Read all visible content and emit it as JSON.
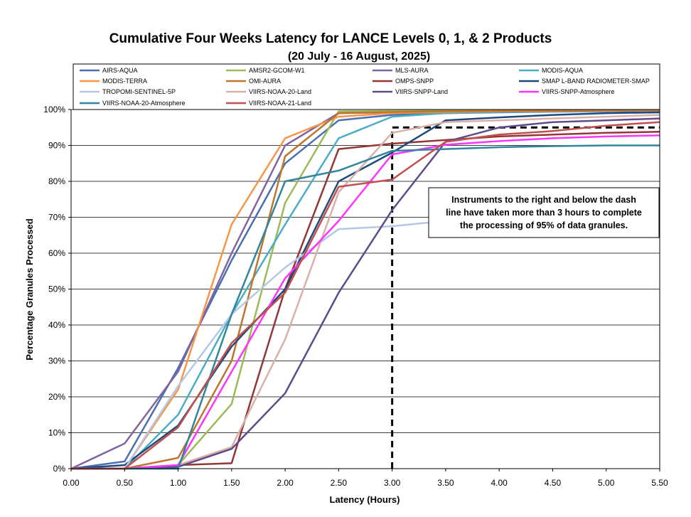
{
  "chart_data": {
    "type": "line",
    "title": "Cumulative Four Weeks Latency  for LANCE Levels 0, 1, & 2 Products",
    "subtitle": "(20  July   -  16  August,  2025)",
    "xlabel": "Latency (Hours)",
    "ylabel": "Percentage Granules Processed",
    "xlim": [
      0,
      5.5
    ],
    "ylim": [
      0,
      100
    ],
    "x_ticks": [
      "0.00",
      "0.50",
      "1.00",
      "1.50",
      "2.00",
      "2.50",
      "3.00",
      "3.50",
      "4.00",
      "4.50",
      "5.00",
      "5.50"
    ],
    "y_ticks": [
      "0%",
      "10%",
      "20%",
      "30%",
      "40%",
      "50%",
      "60%",
      "70%",
      "80%",
      "90%",
      "100%"
    ],
    "grid": "horizontal",
    "legend_position": "top",
    "annotation": [
      "Instruments to the right and below the dash",
      "line have taken more than 3 hours to complete",
      "the processing of 95% of data granules."
    ],
    "threshold": {
      "x": 3.0,
      "y": 95
    },
    "x": [
      0,
      0.5,
      1.0,
      1.5,
      2.0,
      2.5,
      3.0,
      3.5,
      4.0,
      4.5,
      5.0,
      5.5
    ],
    "series": [
      {
        "name": "AIRS-AQUA",
        "color": "#4a6fb5",
        "values": [
          0,
          2,
          28,
          58,
          85,
          97,
          98.5,
          99,
          99.2,
          99.4,
          99.5,
          99.6
        ]
      },
      {
        "name": "AMSR2-GCOM-W1",
        "color": "#9bbb59",
        "values": [
          0,
          0,
          1,
          18,
          74,
          99.5,
          99.6,
          99.7,
          99.8,
          99.8,
          99.9,
          99.9
        ]
      },
      {
        "name": "MLS-AURA",
        "color": "#8064a2",
        "values": [
          0,
          7,
          27,
          60,
          90,
          99,
          99.2,
          99.4,
          99.5,
          99.6,
          99.7,
          99.8
        ]
      },
      {
        "name": "MODIS-AQUA",
        "color": "#4bacc6",
        "values": [
          0,
          0,
          15,
          43,
          68,
          92,
          98,
          99,
          99.3,
          99.5,
          99.6,
          99.7
        ]
      },
      {
        "name": "MODIS-TERRA",
        "color": "#f79646",
        "values": [
          0,
          0,
          22,
          68,
          92,
          98,
          99,
          99.3,
          99.5,
          99.6,
          99.7,
          99.8
        ]
      },
      {
        "name": "OMI-AURA",
        "color": "#c0752e",
        "values": [
          0,
          0,
          3,
          30,
          87,
          99,
          99.3,
          99.5,
          99.6,
          99.7,
          99.8,
          99.8
        ]
      },
      {
        "name": "OMPS-SNPP",
        "color": "#943634",
        "values": [
          0,
          0,
          1,
          1.5,
          50,
          89,
          90.5,
          91.5,
          92.5,
          93,
          93.5,
          93.8
        ]
      },
      {
        "name": "SMAP L-BAND RADIOMETER-SMAP",
        "color": "#1f497d",
        "values": [
          0,
          1,
          12,
          34,
          50,
          80,
          88,
          97,
          97.8,
          98.5,
          99,
          99.2
        ]
      },
      {
        "name": "TROPOMI-SENTINEL-5P",
        "color": "#b4c7e7",
        "values": [
          0,
          0,
          23,
          43,
          56,
          66.7,
          67.5,
          69,
          70,
          70.5,
          71,
          71.5
        ]
      },
      {
        "name": "VIIRS-NOAA-20-Land",
        "color": "#d9b0a8",
        "values": [
          0,
          0,
          1,
          6,
          36,
          77,
          93.5,
          96.5,
          97,
          97.5,
          98,
          98.5
        ]
      },
      {
        "name": "VIIRS-SNPP-Land",
        "color": "#5f4b8b",
        "values": [
          0,
          0,
          0.5,
          5.5,
          21,
          49,
          72,
          91,
          95,
          96.5,
          97,
          97.5
        ]
      },
      {
        "name": "VIIRS-SNPP-Atmosphere",
        "color": "#ff33ff",
        "values": [
          0,
          0,
          1,
          27,
          53,
          69,
          87.5,
          90.2,
          91.2,
          92,
          92.5,
          92.8
        ]
      },
      {
        "name": "VIIRS-NOAA-20-Atmosphere",
        "color": "#31859c",
        "values": [
          0,
          0,
          0,
          43,
          80,
          83,
          88.5,
          89,
          89.5,
          89.8,
          90,
          90
        ]
      },
      {
        "name": "VIIRS-NOAA-21-Land",
        "color": "#c0504d",
        "values": [
          0,
          0,
          11.5,
          35,
          49,
          78.5,
          80.5,
          91,
          93,
          94,
          95.5,
          96.5
        ]
      }
    ]
  }
}
